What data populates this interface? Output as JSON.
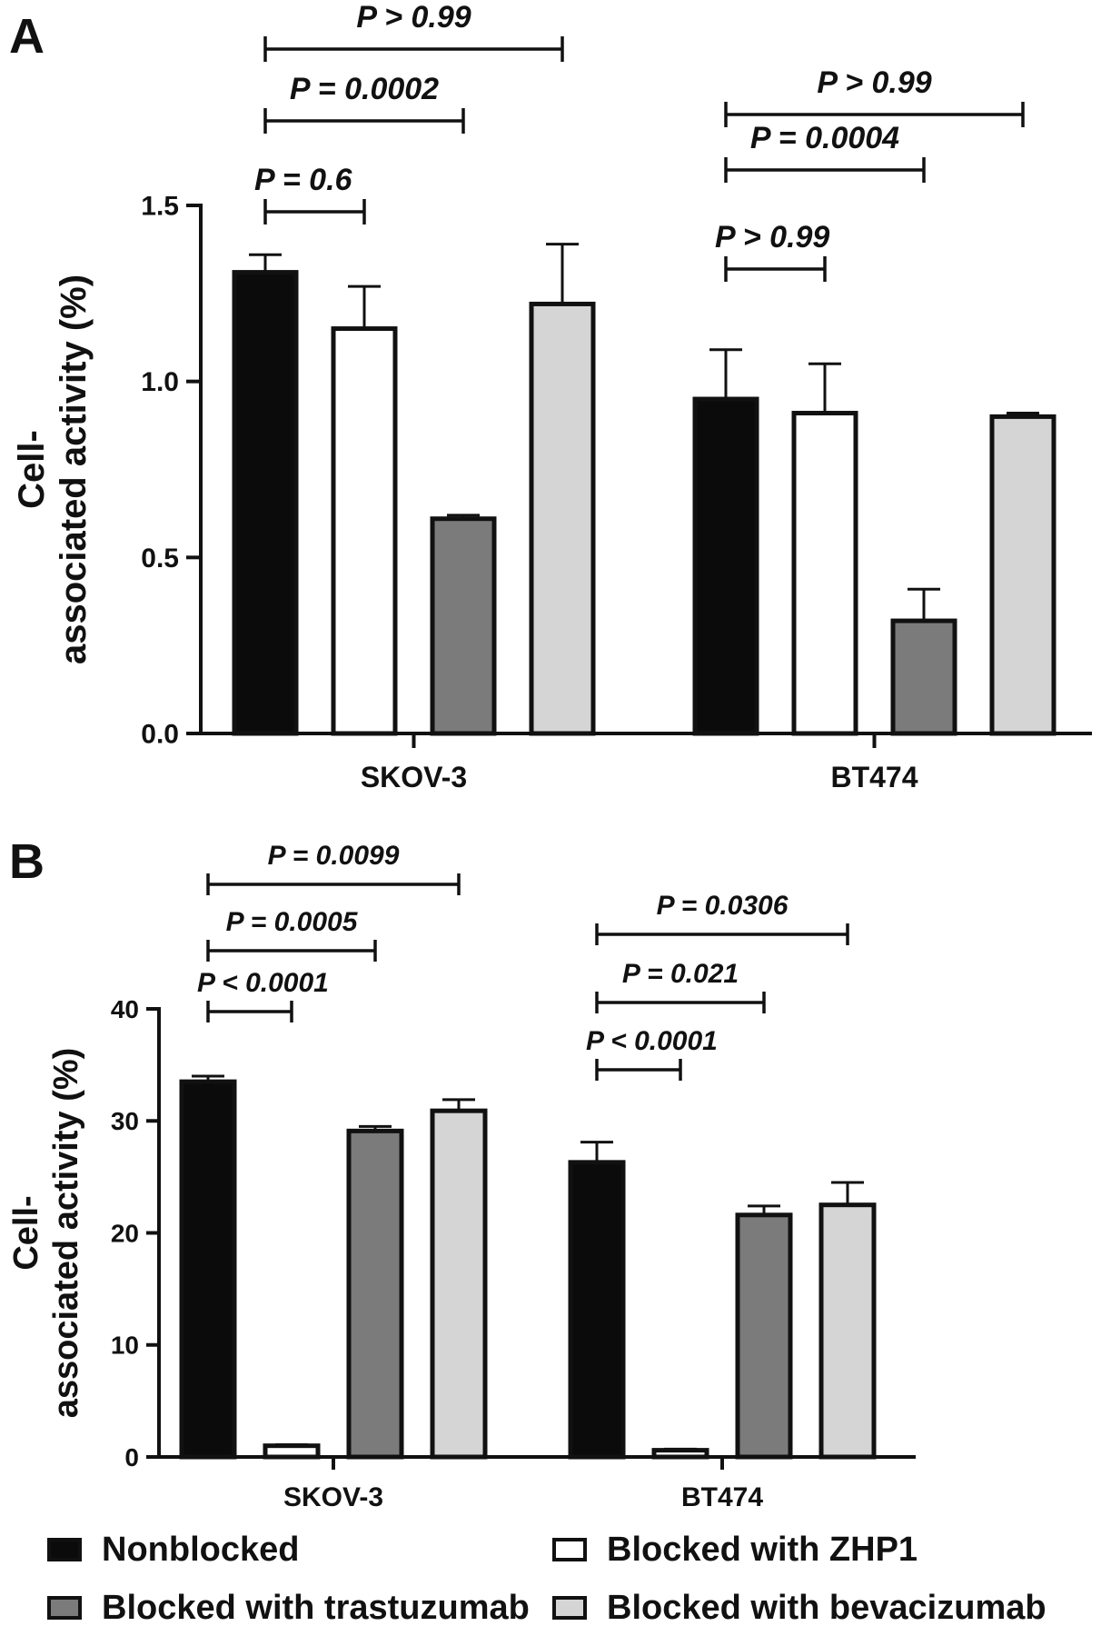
{
  "colors": {
    "nonblocked": "#0b0b0b",
    "zhp1": "#ffffff",
    "trastuzumab": "#7b7b7b",
    "bevacizumab": "#d5d5d5"
  },
  "legend": [
    {
      "label": "Nonblocked",
      "key": "nonblocked"
    },
    {
      "label": "Blocked with ZHP1",
      "key": "zhp1"
    },
    {
      "label": "Blocked with trastuzumab",
      "key": "trastuzumab"
    },
    {
      "label": "Blocked with bevacizumab",
      "key": "bevacizumab"
    }
  ],
  "chart_data": [
    {
      "panel": "A",
      "type": "bar",
      "ylabel": "Cell- associated activity (%)",
      "ylim": [
        0,
        1.5
      ],
      "yticks": [
        "0.0",
        "0.5",
        "1.0",
        "1.5"
      ],
      "categories": [
        "SKOV-3",
        "BT474"
      ],
      "series": [
        {
          "name": "Nonblocked",
          "key": "nonblocked",
          "values": [
            1.31,
            0.95
          ],
          "errors": [
            0.05,
            0.14
          ]
        },
        {
          "name": "Blocked with ZHP1",
          "key": "zhp1",
          "values": [
            1.15,
            0.91
          ],
          "errors": [
            0.12,
            0.14
          ]
        },
        {
          "name": "Blocked with trastuzumab",
          "key": "trastuzumab",
          "values": [
            0.61,
            0.32
          ],
          "errors": [
            0.01,
            0.09
          ]
        },
        {
          "name": "Blocked with bevacizumab",
          "key": "bevacizumab",
          "values": [
            1.22,
            0.9
          ],
          "errors": [
            0.17,
            0.01
          ]
        }
      ],
      "annotations": [
        {
          "category": 0,
          "from": 0,
          "to": 3,
          "label": "P > 0.99"
        },
        {
          "category": 0,
          "from": 0,
          "to": 2,
          "label": "P = 0.0002"
        },
        {
          "category": 0,
          "from": 0,
          "to": 1,
          "label": "P = 0.6"
        },
        {
          "category": 1,
          "from": 0,
          "to": 3,
          "label": "P > 0.99"
        },
        {
          "category": 1,
          "from": 0,
          "to": 2,
          "label": "P = 0.0004"
        },
        {
          "category": 1,
          "from": 0,
          "to": 1,
          "label": "P > 0.99"
        }
      ]
    },
    {
      "panel": "B",
      "type": "bar",
      "ylabel": "Cell- associated activity (%)",
      "ylim": [
        0,
        40
      ],
      "yticks": [
        "0",
        "10",
        "20",
        "30",
        "40"
      ],
      "categories": [
        "SKOV-3",
        "BT474"
      ],
      "series": [
        {
          "name": "Nonblocked",
          "key": "nonblocked",
          "values": [
            33.5,
            26.3
          ],
          "errors": [
            0.5,
            1.8
          ]
        },
        {
          "name": "Blocked with ZHP1",
          "key": "zhp1",
          "values": [
            1.0,
            0.6
          ],
          "errors": [
            0.1,
            0.1
          ]
        },
        {
          "name": "Blocked with trastuzumab",
          "key": "trastuzumab",
          "values": [
            29.1,
            21.6
          ],
          "errors": [
            0.4,
            0.8
          ]
        },
        {
          "name": "Blocked with bevacizumab",
          "key": "bevacizumab",
          "values": [
            30.9,
            22.5
          ],
          "errors": [
            1.0,
            2.0
          ]
        }
      ],
      "annotations": [
        {
          "category": 0,
          "from": 0,
          "to": 3,
          "label": "P = 0.0099"
        },
        {
          "category": 0,
          "from": 0,
          "to": 2,
          "label": "P = 0.0005"
        },
        {
          "category": 0,
          "from": 0,
          "to": 1,
          "label": "P < 0.0001"
        },
        {
          "category": 1,
          "from": 0,
          "to": 3,
          "label": "P = 0.0306"
        },
        {
          "category": 1,
          "from": 0,
          "to": 2,
          "label": "P = 0.021"
        },
        {
          "category": 1,
          "from": 0,
          "to": 1,
          "label": "P < 0.0001"
        }
      ]
    }
  ]
}
